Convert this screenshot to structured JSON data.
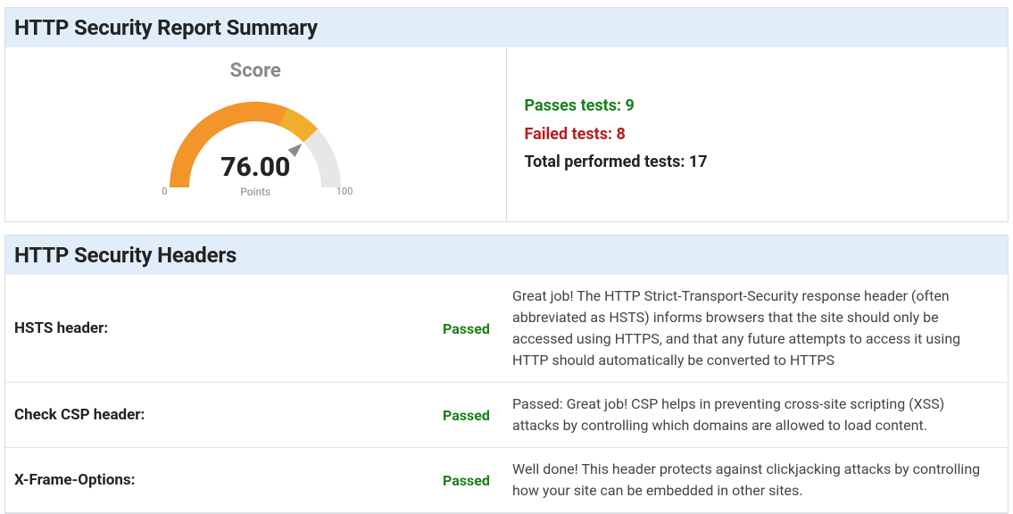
{
  "summary": {
    "title": "HTTP Security Report Summary",
    "score_label": "Score",
    "score_value": "76.00",
    "score_points_label": "Points",
    "gauge": {
      "min": 0,
      "max": 100,
      "value": 76.0,
      "min_label": "0",
      "max_label": "100",
      "track_color": "#e7e7e7",
      "fill_color": "#f2952a",
      "highlight_color": "#f1ae2c",
      "needle_color": "#8b8b8b",
      "stroke_width": 22
    },
    "passes_label": "Passes tests:",
    "passes_count": "9",
    "failed_label": "Failed tests:",
    "failed_count": "8",
    "total_label": "Total performed tests:",
    "total_count": "17",
    "colors": {
      "pass": "#1a7f1a",
      "fail": "#b51d1d",
      "total": "#222222",
      "header_bg": "#e2edfa",
      "border": "#d7dce1"
    }
  },
  "headers_section": {
    "title": "HTTP Security Headers",
    "rows": [
      {
        "name": "HSTS header:",
        "status": "Passed",
        "status_color": "#1a7f1a",
        "description": "Great job! The HTTP Strict-Transport-Security response header (often abbreviated as HSTS) informs browsers that the site should only be accessed using HTTPS, and that any future attempts to access it using HTTP should automatically be converted to HTTPS"
      },
      {
        "name": "Check CSP header:",
        "status": "Passed",
        "status_color": "#1a7f1a",
        "description": "Passed: Great job! CSP helps in preventing cross-site scripting (XSS) attacks by controlling which domains are allowed to load content."
      },
      {
        "name": "X-Frame-Options:",
        "status": "Passed",
        "status_color": "#1a7f1a",
        "description": "Well done! This header protects against clickjacking attacks by controlling how your site can be embedded in other sites."
      }
    ]
  }
}
